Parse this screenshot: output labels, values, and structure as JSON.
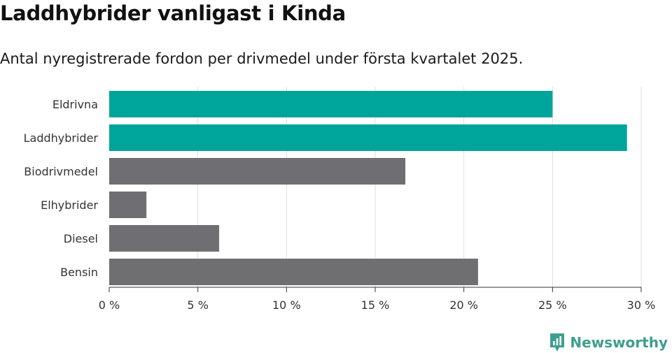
{
  "title": "Laddhybrider vanligast i Kinda",
  "subtitle": "Antal nyregistrerade fordon per drivmedel under första kvartalet 2025.",
  "brand": {
    "name": "Newsworthy",
    "icon": "newsworthy-logo-icon",
    "color": "#3f9e8f"
  },
  "colors": {
    "highlight": "#00a599",
    "default": "#6e6e73",
    "grid": "#dddddd",
    "axis": "#333333"
  },
  "chart_data": {
    "type": "bar",
    "orientation": "horizontal",
    "categories": [
      "Eldrivna",
      "Laddhybrider",
      "Biodrivmedel",
      "Elhybrider",
      "Diesel",
      "Bensin"
    ],
    "values": [
      25.0,
      29.2,
      16.7,
      2.1,
      6.2,
      20.8
    ],
    "highlighted": [
      true,
      true,
      false,
      false,
      false,
      false
    ],
    "xlim": [
      0,
      30
    ],
    "xticks": [
      0,
      5,
      10,
      15,
      20,
      25,
      30
    ],
    "xtick_labels": [
      "0 %",
      "5 %",
      "10 %",
      "15 %",
      "20 %",
      "25 %",
      "30 %"
    ],
    "grid": true,
    "xlabel": "",
    "ylabel": ""
  }
}
